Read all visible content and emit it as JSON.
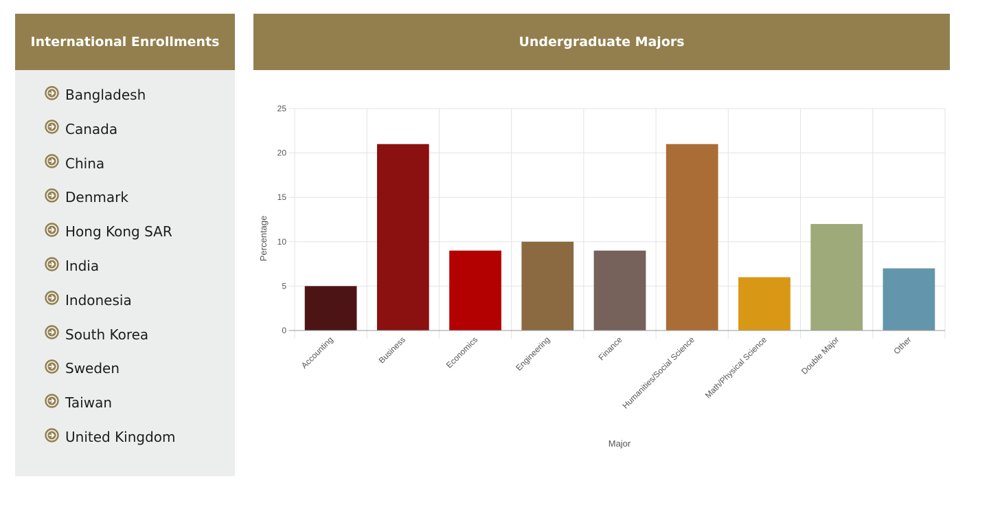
{
  "left_panel": {
    "title": "International Enrollments",
    "items": [
      {
        "label": "Bangladesh"
      },
      {
        "label": "Canada"
      },
      {
        "label": "China"
      },
      {
        "label": "Denmark"
      },
      {
        "label": "Hong Kong SAR"
      },
      {
        "label": "India"
      },
      {
        "label": "Indonesia"
      },
      {
        "label": "South Korea"
      },
      {
        "label": "Sweden"
      },
      {
        "label": "Taiwan"
      },
      {
        "label": "United Kingdom"
      }
    ],
    "icon": "circle-arrow-right-icon"
  },
  "right_panel": {
    "title": "Undergraduate Majors"
  },
  "colors": {
    "header_bg": "#937f4e",
    "panel_bg": "#eceeed",
    "header_text": "#ffffff",
    "icon": "#937f4e",
    "grid": "#e3e3e8"
  },
  "chart_data": {
    "type": "bar",
    "xlabel": "Major",
    "ylabel": "Percentage",
    "ylim": [
      0,
      25
    ],
    "yticks": [
      0,
      5,
      10,
      15,
      20,
      25
    ],
    "grid": true,
    "categories": [
      "Accounting",
      "Business",
      "Economics",
      "Engineering",
      "Finance",
      "Humanities/Social Science",
      "Math/Physical Science",
      "Double Major",
      "Other"
    ],
    "values": [
      5,
      21,
      9,
      10,
      9,
      21,
      6,
      12,
      7
    ],
    "colors": [
      "#4d1416",
      "#8b1010",
      "#b30000",
      "#8b6a42",
      "#76625a",
      "#ab6d36",
      "#d99716",
      "#9eaa79",
      "#6396ad"
    ]
  }
}
